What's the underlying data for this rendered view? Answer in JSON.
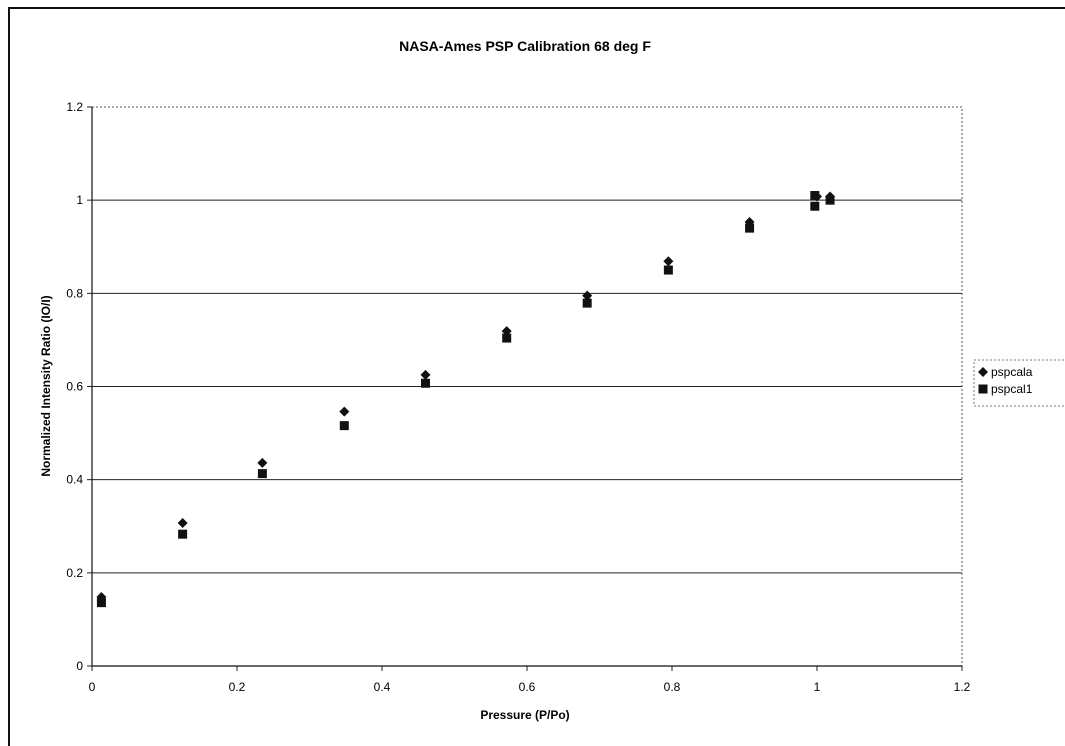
{
  "chart_data": {
    "type": "scatter",
    "title": "NASA-Ames PSP Calibration 68 deg F",
    "xlabel": "Pressure (P/Po)",
    "ylabel": "Normalized Intensity Ratio (IO/I)",
    "xlim": [
      0,
      1.2
    ],
    "ylim": [
      0,
      1.2
    ],
    "xticks": [
      "0",
      "0.2",
      "0.4",
      "0.6",
      "0.8",
      "1",
      "1.2"
    ],
    "yticks": [
      "0",
      "0.2",
      "0.4",
      "0.6",
      "0.8",
      "1",
      "1.2"
    ],
    "grid": "horizontal",
    "legend_position": "right",
    "series": [
      {
        "name": "pspcala",
        "marker": "diamond",
        "color": "#111111",
        "x": [
          0.013,
          0.125,
          0.235,
          0.348,
          0.46,
          0.572,
          0.683,
          0.795,
          0.907,
          1.0,
          1.018
        ],
        "y": [
          0.148,
          0.307,
          0.436,
          0.546,
          0.625,
          0.719,
          0.795,
          0.869,
          0.953,
          1.008,
          1.008
        ]
      },
      {
        "name": "pspcal1",
        "marker": "square",
        "color": "#111111",
        "x": [
          0.013,
          0.125,
          0.235,
          0.348,
          0.46,
          0.572,
          0.683,
          0.795,
          0.907,
          0.997,
          0.997,
          1.018
        ],
        "y": [
          0.136,
          0.283,
          0.413,
          0.516,
          0.607,
          0.704,
          0.779,
          0.85,
          0.94,
          0.987,
          1.01,
          1.0
        ]
      }
    ]
  }
}
